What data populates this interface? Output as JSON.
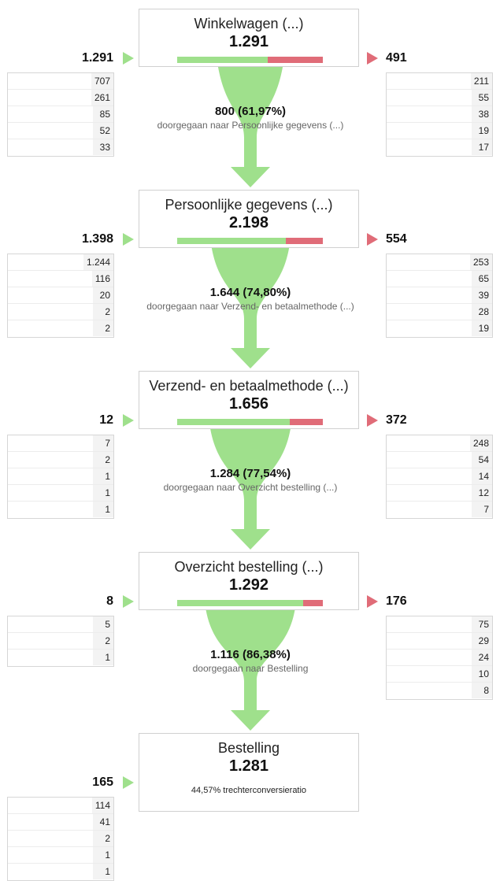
{
  "chart_data": {
    "type": "funnel",
    "steps": [
      {
        "name": "Winkelwagen (...)",
        "value": "1.291",
        "value_num": 1291,
        "entries": "1.291",
        "entry_sources": [
          "707",
          "261",
          "85",
          "52",
          "33"
        ],
        "exits": "491",
        "exit_sources": [
          "211",
          "55",
          "38",
          "19",
          "17"
        ],
        "continued": "800 (61,97%)",
        "continued_label": "doorgegaan naar Persoonlijke gegevens (...)",
        "continued_fraction": 0.6197
      },
      {
        "name": "Persoonlijke gegevens (...)",
        "value": "2.198",
        "value_num": 2198,
        "entries": "1.398",
        "entry_sources": [
          "1.244",
          "116",
          "20",
          "2",
          "2"
        ],
        "exits": "554",
        "exit_sources": [
          "253",
          "65",
          "39",
          "28",
          "19"
        ],
        "continued": "1.644 (74,80%)",
        "continued_label": "doorgegaan naar Verzend- en betaalmethode (...)",
        "continued_fraction": 0.748
      },
      {
        "name": "Verzend- en betaalmethode (...)",
        "value": "1.656",
        "value_num": 1656,
        "entries": "12",
        "entry_sources": [
          "7",
          "2",
          "1",
          "1",
          "1"
        ],
        "exits": "372",
        "exit_sources": [
          "248",
          "54",
          "14",
          "12",
          "7"
        ],
        "continued": "1.284 (77,54%)",
        "continued_label": "doorgegaan naar Overzicht bestelling (...)",
        "continued_fraction": 0.7754
      },
      {
        "name": "Overzicht bestelling (...)",
        "value": "1.292",
        "value_num": 1292,
        "entries": "8",
        "entry_sources": [
          "5",
          "2",
          "1"
        ],
        "exits": "176",
        "exit_sources": [
          "75",
          "29",
          "24",
          "10",
          "8"
        ],
        "continued": "1.116 (86,38%)",
        "continued_label": "doorgegaan naar Bestelling",
        "continued_fraction": 0.8638
      },
      {
        "name": "Bestelling",
        "value": "1.281",
        "value_num": 1281,
        "entries": "165",
        "entry_sources": [
          "114",
          "41",
          "2",
          "1",
          "1"
        ],
        "conversion_rate": "44,57% trechterconversieratio"
      }
    ],
    "colors": {
      "continued": "#9fe08c",
      "exited": "#e06c78"
    }
  }
}
